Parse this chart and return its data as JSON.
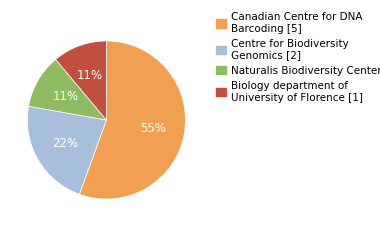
{
  "labels": [
    "Canadian Centre for DNA\nBarcoding [5]",
    "Centre for Biodiversity\nGenomics [2]",
    "Naturalis Biodiversity Center [1]",
    "Biology department of\nUniversity of Florence [1]"
  ],
  "values": [
    55,
    22,
    11,
    11
  ],
  "colors": [
    "#f0a050",
    "#a8bfdc",
    "#8fbc60",
    "#c05040"
  ],
  "pct_labels": [
    "55%",
    "22%",
    "11%",
    "11%"
  ],
  "startangle": 90,
  "background_color": "#ffffff",
  "legend_fontsize": 7.5,
  "pct_fontsize": 8.5
}
